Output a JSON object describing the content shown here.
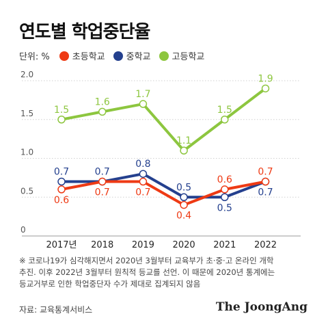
{
  "title": "연도별 학업중단율",
  "unit_label": "단위: %",
  "legend": [
    {
      "label": "초등학교",
      "color": "#ee3a14"
    },
    {
      "label": "중학교",
      "color": "#24408e"
    },
    {
      "label": "고등학교",
      "color": "#8dc63f"
    }
  ],
  "footnote": {
    "line1": "※ 코로나19가 심각해지면서 2020년 3월부터 교육부가 초·중·고 온라인 개학",
    "line2": "추진. 이후 2022년 3월부터 원칙적 등교를 선언. 이 때문에 2020년 통계에는",
    "line3": "등교거부로 인한 학업중단자 수가 제대로 집계되지 않음"
  },
  "source": "자료: 교육통계서비스",
  "brand": "The JoongAng",
  "chart_data": {
    "type": "line",
    "categories": [
      "2017년",
      "2018",
      "2019",
      "2020",
      "2021",
      "2022"
    ],
    "series": [
      {
        "name": "초등학교",
        "color": "#ee3a14",
        "values": [
          0.6,
          0.7,
          0.7,
          0.4,
          0.6,
          0.7
        ],
        "labels": [
          "0.6",
          "0.7",
          "0.7",
          "0.4",
          "0.6",
          "0.7"
        ],
        "label_side": [
          "below",
          "below",
          "below",
          "below",
          "above",
          "above"
        ]
      },
      {
        "name": "중학교",
        "color": "#24408e",
        "values": [
          0.7,
          0.7,
          0.8,
          0.5,
          0.5,
          0.7
        ],
        "labels": [
          "0.7",
          "0.7",
          "0.8",
          "0.5",
          "0.5",
          "0.7"
        ],
        "label_side": [
          "above",
          "above",
          "above",
          "above",
          "below",
          "below"
        ]
      },
      {
        "name": "고등학교",
        "color": "#8dc63f",
        "values": [
          1.5,
          1.6,
          1.7,
          1.1,
          1.5,
          1.9
        ],
        "labels": [
          "1.5",
          "1.6",
          "1.7",
          "1.1",
          "1.5",
          "1.9"
        ],
        "label_side": [
          "above",
          "above",
          "above",
          "above",
          "above",
          "above"
        ]
      }
    ],
    "yticks": [
      "0",
      "0.5",
      "1.0",
      "1.5",
      "2.0"
    ],
    "ylim": [
      0,
      2.0
    ],
    "grid": true,
    "legend_position": "top-left"
  }
}
